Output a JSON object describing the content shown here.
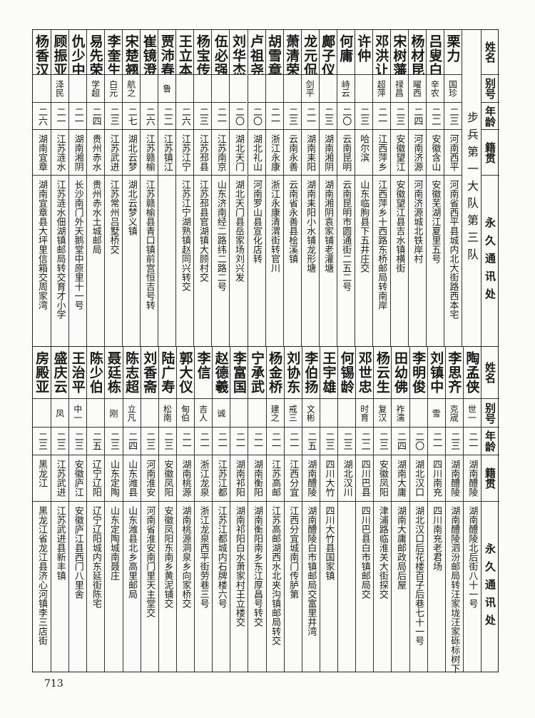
{
  "headers": {
    "name": "姓名",
    "alias": "别号",
    "age": "年龄",
    "origin": "籍贯",
    "address": "永久通讯处"
  },
  "top": {
    "section_label": "步兵第一大队第三队",
    "rows": [
      {
        "name": "栗力",
        "alias": "国珍",
        "age": "二三",
        "origin": "河南西平",
        "address": "河南省西平县城内北大街路西本宅"
      },
      {
        "name": "吕叟白",
        "alias": "辛农",
        "age": "二二",
        "origin": "安徽含山",
        "address": "安徽芜湖江夏里五号"
      },
      {
        "name": "杨材昆",
        "alias": "曜西",
        "age": "二四",
        "origin": "河南济源",
        "address": "河南济源城北铁岸村"
      },
      {
        "name": "宋树藩",
        "alias": "禄昌",
        "age": "二三",
        "origin": "安徽望江",
        "address": "安徽望江县吉水镇横街"
      },
      {
        "name": "邓洪让",
        "alias": "超萍",
        "age": "二一",
        "origin": "江西萍乡",
        "address": "江西萍乡十西路东桥邮局转南岸"
      },
      {
        "name": "许仲",
        "alias": "",
        "age": "二三",
        "origin": "哈尔滨",
        "address": "山东临朐县下五井庄交"
      },
      {
        "name": "何庸",
        "alias": "峙云",
        "age": "二〇",
        "origin": "云南昆明",
        "address": "云南昆明市圆通街二五二号"
      },
      {
        "name": "鄺子仪",
        "alias": "",
        "age": "二三",
        "origin": "湖南湘阴",
        "address": "湖南湘阴袁家铺老灌塘"
      },
      {
        "name": "龙元侃",
        "alias": "剑平",
        "age": "二一",
        "origin": "湖南耒阳",
        "address": "湖南耒阳小水铺龙形塘"
      },
      {
        "name": "萧清荣",
        "alias": "",
        "age": "二三",
        "origin": "云南永善",
        "address": "云南省永善县桧溪镇"
      },
      {
        "name": "胡雪章",
        "alias": "",
        "age": "二一",
        "origin": "浙江永康",
        "address": "浙江永康清渭街转官川"
      },
      {
        "name": "卢祖尧",
        "alias": "",
        "age": "二〇",
        "origin": "湖北礼山",
        "address": "河南罗山县宣化店转"
      },
      {
        "name": "刘华杰",
        "alias": "",
        "age": "二〇",
        "origin": "湖北天门",
        "address": "湖北天门县岳家场刘兴发"
      },
      {
        "name": "伍必强",
        "alias": "",
        "age": "二一",
        "origin": "江苏南京",
        "address": "山东济南经二路纬二路二号"
      },
      {
        "name": "杨宝传",
        "alias": "",
        "age": "二三",
        "origin": "江苏邳县",
        "address": "江苏邳县官湖镇大顾村交"
      },
      {
        "name": "王立本",
        "alias": "",
        "age": "二六",
        "origin": "江苏江宁",
        "address": "江苏江宁湖熟镇赵同兴转交"
      },
      {
        "name": "贾沛春",
        "alias": "鲁",
        "age": "二二",
        "origin": "江苏镇江",
        "address": ""
      },
      {
        "name": "崔镜澄",
        "alias": "",
        "age": "二六",
        "origin": "江苏赣榆",
        "address": "江苏赣榆县青口镇前宫恒吉号转"
      },
      {
        "name": "宋楚翘",
        "alias": "航之",
        "age": "二七",
        "origin": "湖北云梦",
        "address": "湖北云梦义镇"
      },
      {
        "name": "李奎生",
        "alias": "白元",
        "age": "二三",
        "origin": "江苏武进",
        "address": "江苏常州吕墅桥交"
      },
      {
        "name": "易先荣",
        "alias": "学超",
        "age": "二四",
        "origin": "贵州赤水",
        "address": "贵州赤水土城邮局"
      },
      {
        "name": "仇少中",
        "alias": "",
        "age": "二一",
        "origin": "湖南湘阴",
        "address": "长沙南门外天鹅堂中原里十一号"
      },
      {
        "name": "顾振亚",
        "alias": "泽民",
        "age": "二一",
        "origin": "江苏涟水",
        "address": "江苏涟水佃湖镇邮局转交育才小学"
      },
      {
        "name": "杨香汉",
        "alias": "",
        "age": "二六",
        "origin": "湖南宜章",
        "address": "湖南宜章县大坪里信箱交周家湾"
      }
    ]
  },
  "bottom": {
    "rows": [
      {
        "name": "陶孟侠",
        "alias": "世一",
        "age": "二一",
        "origin": "湖南醴陵",
        "address": "湖南醴陵北后街八十一号"
      },
      {
        "name": "李思齐",
        "alias": "克宬",
        "age": "二三",
        "origin": "湖南醴陵",
        "address": "湖南醴陵泗汾邮局转汪家垅汪家砾标树下"
      },
      {
        "name": "刘镇中",
        "alias": "雪",
        "age": "二一",
        "origin": "四川南充",
        "address": "四川南充老君场"
      },
      {
        "name": "李明俊",
        "alias": "",
        "age": "二〇",
        "origin": "湖北汉口",
        "address": "湖北汉口后花楼百子后巷七十一号"
      },
      {
        "name": "田幼佛",
        "alias": "祚濡",
        "age": "二四",
        "origin": "湖南大庸",
        "address": "湖南大庸邮政局后屋"
      },
      {
        "name": "杨云生",
        "alias": "复汉",
        "age": "二三",
        "origin": "安徽凤阳",
        "address": "津浦路临淮关大街探交"
      },
      {
        "name": "邓世忠",
        "alias": "时育",
        "age": "二二",
        "origin": "四川巴县",
        "address": "四川巴县白市镇邮局交"
      },
      {
        "name": "何锡龄",
        "alias": "",
        "age": "二三",
        "origin": "湖北汉川",
        "address": ""
      },
      {
        "name": "王宇雄",
        "alias": "",
        "age": "二三",
        "origin": "四川大竹",
        "address": "四川大竹县国家镇"
      },
      {
        "name": "李伯扬",
        "alias": "文彬",
        "age": "二五",
        "origin": "湖南醴陵",
        "address": "湖南醴陵白市镇邮局交富里井湾"
      },
      {
        "name": "刘协东",
        "alias": "戒三",
        "age": "二一",
        "origin": "江西分宜",
        "address": "江西分宜城南门传胪第"
      },
      {
        "name": "杨金桥",
        "alias": "建之",
        "age": "二一",
        "origin": "江苏高邮",
        "address": "江苏高邮湖西水北夹沟镇邮局转交"
      },
      {
        "name": "宁承武",
        "alias": "",
        "age": "二一",
        "origin": "湖南衡阳",
        "address": "湖南衡阳南乡东江厚昌号转交"
      },
      {
        "name": "李富国",
        "alias": "",
        "age": "二一",
        "origin": "湖南祁阳",
        "address": "湖南祁阳白水萧家村王立楼交"
      },
      {
        "name": "赵德羲",
        "alias": "诚",
        "age": "二一",
        "origin": "江苏江都",
        "address": "江苏江都城内石牌楼六号"
      },
      {
        "name": "李信",
        "alias": "吉人",
        "age": "二一",
        "origin": "浙江龙泉",
        "address": "浙江龙泉西平街劳巷三号"
      },
      {
        "name": "郭大仪",
        "alias": "甸伯",
        "age": "二一",
        "origin": "湖南桃源",
        "address": "湖南桃源洞泉乡向家桥交"
      },
      {
        "name": "陆广寿",
        "alias": "松南",
        "age": "二三",
        "origin": "安徽凤阳",
        "address": "安徽凤阳东南乡黄泥铺交"
      },
      {
        "name": "刘香斋",
        "alias": "",
        "age": "二三",
        "origin": "河南淮安",
        "address": "河南省淮安南门里天主堂交"
      },
      {
        "name": "陈志超",
        "alias": "立凡",
        "age": "二四",
        "origin": "山东潍县",
        "address": "山东潍县北乡高里邮局"
      },
      {
        "name": "聂廷栋",
        "alias": "刚",
        "age": "二三",
        "origin": "山东定陶",
        "address": "山东定陶城南聂庄"
      },
      {
        "name": "陈少伯",
        "alias": "",
        "age": "二五",
        "origin": "辽宁辽阳",
        "address": "辽宁辽阳城内东延街陈宅"
      },
      {
        "name": "王治平",
        "alias": "中一",
        "age": "二三",
        "origin": "安徽庐江",
        "address": "安徽庐江县西门八里舍"
      },
      {
        "name": "盛庆云",
        "alias": "凤",
        "age": "二三",
        "origin": "江苏武进",
        "address": "江苏武进县新丰镇"
      },
      {
        "name": "房殿亚",
        "alias": "",
        "age": "二三",
        "origin": "黑龙江",
        "address": "黑龙江省龙江县济心河镇李三店街"
      }
    ]
  },
  "page_number": "713"
}
